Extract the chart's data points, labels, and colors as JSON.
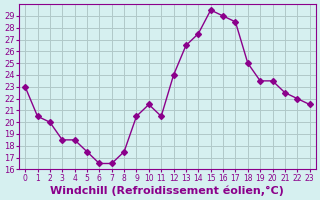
{
  "x": [
    0,
    1,
    2,
    3,
    4,
    5,
    6,
    7,
    8,
    9,
    10,
    11,
    12,
    13,
    14,
    15,
    16,
    17,
    18,
    19,
    20,
    21,
    22,
    23
  ],
  "y": [
    23.0,
    20.5,
    20.0,
    18.5,
    18.5,
    17.5,
    16.5,
    16.5,
    17.5,
    20.5,
    21.5,
    20.5,
    24.0,
    26.5,
    27.5,
    29.5,
    29.0,
    28.5,
    25.0,
    23.5,
    23.5,
    22.5,
    22.0,
    21.5
  ],
  "line_color": "#8B008B",
  "marker": "D",
  "marker_size": 3,
  "bg_color": "#d6f0f0",
  "grid_color": "#b0c8c8",
  "xlabel": "Windchill (Refroidissement éolien,°C)",
  "xlabel_fontsize": 8,
  "xtick_labels": [
    "0",
    "1",
    "2",
    "3",
    "4",
    "5",
    "6",
    "7",
    "8",
    "9",
    "10",
    "11",
    "12",
    "13",
    "14",
    "15",
    "16",
    "17",
    "18",
    "19",
    "20",
    "21",
    "22",
    "23"
  ],
  "ylim": [
    16,
    30
  ],
  "yticks": [
    16,
    17,
    18,
    19,
    20,
    21,
    22,
    23,
    24,
    25,
    26,
    27,
    28,
    29
  ],
  "spine_color": "#8B008B",
  "tick_color": "#8B008B"
}
